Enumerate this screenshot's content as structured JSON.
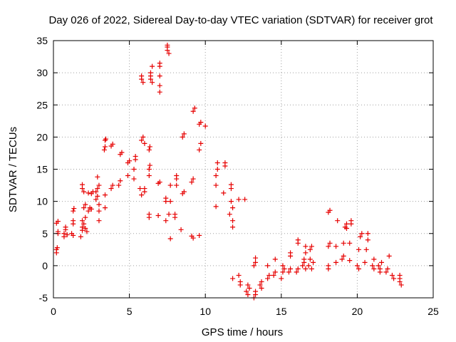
{
  "chart_data": {
    "type": "scatter",
    "title": "Day 026 of 2022, Sidereal Day-to-day VTEC variation (SDTVAR) for receiver grot",
    "xlabel": "GPS time / hours",
    "ylabel": "SDTVAR / TECUs",
    "xlim": [
      0,
      25
    ],
    "ylim": [
      -5,
      35
    ],
    "xticks": [
      0,
      5,
      10,
      15,
      20,
      25
    ],
    "yticks": [
      -5,
      0,
      5,
      10,
      15,
      20,
      25,
      30,
      35
    ],
    "grid": true,
    "marker": "plus",
    "colors": {
      "series": "#e60000",
      "axis": "#000000",
      "grid": "#a0a0a0"
    },
    "series": [
      {
        "name": "SDTVAR",
        "points": [
          [
            0.2,
            2.0
          ],
          [
            0.2,
            2.5
          ],
          [
            0.25,
            2.8
          ],
          [
            0.3,
            5.0
          ],
          [
            0.3,
            5.3
          ],
          [
            0.2,
            6.6
          ],
          [
            0.3,
            6.9
          ],
          [
            0.7,
            4.5
          ],
          [
            0.7,
            5.0
          ],
          [
            0.8,
            5.6
          ],
          [
            0.8,
            6.0
          ],
          [
            0.9,
            4.8
          ],
          [
            1.2,
            5.0
          ],
          [
            1.3,
            6.5
          ],
          [
            1.3,
            7.0
          ],
          [
            1.3,
            8.5
          ],
          [
            1.35,
            8.9
          ],
          [
            1.3,
            4.7
          ],
          [
            1.8,
            4.5
          ],
          [
            1.9,
            5.5
          ],
          [
            1.9,
            6.0
          ],
          [
            2.0,
            6.5
          ],
          [
            1.9,
            7.0
          ],
          [
            1.9,
            12.0
          ],
          [
            1.9,
            12.6
          ],
          [
            2.0,
            11.5
          ],
          [
            2.0,
            9.0
          ],
          [
            2.1,
            9.5
          ],
          [
            2.1,
            7.5
          ],
          [
            2.1,
            5.8
          ],
          [
            2.2,
            5.3
          ],
          [
            2.3,
            8.5
          ],
          [
            2.4,
            9.0
          ],
          [
            2.5,
            8.8
          ],
          [
            2.5,
            11.2
          ],
          [
            2.6,
            11.5
          ],
          [
            2.3,
            11.3
          ],
          [
            2.8,
            10.3
          ],
          [
            2.8,
            11.5
          ],
          [
            2.9,
            10.8
          ],
          [
            3.0,
            8.5
          ],
          [
            3.0,
            9.5
          ],
          [
            2.9,
            12.0
          ],
          [
            3.0,
            12.5
          ],
          [
            2.9,
            13.8
          ],
          [
            3.0,
            7.0
          ],
          [
            3.4,
            9.0
          ],
          [
            3.4,
            11.0
          ],
          [
            3.35,
            18.0
          ],
          [
            3.4,
            18.5
          ],
          [
            3.4,
            19.5
          ],
          [
            3.45,
            19.7
          ],
          [
            3.8,
            12.0
          ],
          [
            3.9,
            12.5
          ],
          [
            3.8,
            18.6
          ],
          [
            3.9,
            18.9
          ],
          [
            4.3,
            12.5
          ],
          [
            4.4,
            13.2
          ],
          [
            4.4,
            17.3
          ],
          [
            4.5,
            17.6
          ],
          [
            4.9,
            14.0
          ],
          [
            4.9,
            16.0
          ],
          [
            5.0,
            16.3
          ],
          [
            5.3,
            13.5
          ],
          [
            5.3,
            15.0
          ],
          [
            5.4,
            16.5
          ],
          [
            5.4,
            17.0
          ],
          [
            5.7,
            12.0
          ],
          [
            5.8,
            11.0
          ],
          [
            5.8,
            19.5
          ],
          [
            5.9,
            20.0
          ],
          [
            5.8,
            29.0
          ],
          [
            5.8,
            29.5
          ],
          [
            5.9,
            28.5
          ],
          [
            6.0,
            12.0
          ],
          [
            6.0,
            11.5
          ],
          [
            6.0,
            19.0
          ],
          [
            6.3,
            7.5
          ],
          [
            6.3,
            8.0
          ],
          [
            6.3,
            14.0
          ],
          [
            6.3,
            15.0
          ],
          [
            6.35,
            15.6
          ],
          [
            6.3,
            18.0
          ],
          [
            6.35,
            18.5
          ],
          [
            6.4,
            29.0
          ],
          [
            6.4,
            29.5
          ],
          [
            6.4,
            30.0
          ],
          [
            6.5,
            31.0
          ],
          [
            6.5,
            28.5
          ],
          [
            6.9,
            7.8
          ],
          [
            6.9,
            12.8
          ],
          [
            7.0,
            13.0
          ],
          [
            7.0,
            31.5
          ],
          [
            7.0,
            31.0
          ],
          [
            7.0,
            29.5
          ],
          [
            7.0,
            28.0
          ],
          [
            7.0,
            27.0
          ],
          [
            7.4,
            7.0
          ],
          [
            7.4,
            10.0
          ],
          [
            7.4,
            10.5
          ],
          [
            7.5,
            34.0
          ],
          [
            7.5,
            33.5
          ],
          [
            7.6,
            33.0
          ],
          [
            7.5,
            34.3
          ],
          [
            7.7,
            4.2
          ],
          [
            7.7,
            10.0
          ],
          [
            7.7,
            12.5
          ],
          [
            7.6,
            8.0
          ],
          [
            8.0,
            7.5
          ],
          [
            8.0,
            8.0
          ],
          [
            8.1,
            12.5
          ],
          [
            8.1,
            13.5
          ],
          [
            8.1,
            14.0
          ],
          [
            8.4,
            5.6
          ],
          [
            8.5,
            11.2
          ],
          [
            8.6,
            11.5
          ],
          [
            8.5,
            20.0
          ],
          [
            8.6,
            20.5
          ],
          [
            9.1,
            4.6
          ],
          [
            9.2,
            4.3
          ],
          [
            9.1,
            13.0
          ],
          [
            9.2,
            13.5
          ],
          [
            9.2,
            24.0
          ],
          [
            9.3,
            24.5
          ],
          [
            9.6,
            4.7
          ],
          [
            9.6,
            18.0
          ],
          [
            9.7,
            19.0
          ],
          [
            9.6,
            22.0
          ],
          [
            9.7,
            22.3
          ],
          [
            10.0,
            21.7
          ],
          [
            10.7,
            9.2
          ],
          [
            10.7,
            12.5
          ],
          [
            10.7,
            14.0
          ],
          [
            10.8,
            15.0
          ],
          [
            10.8,
            16.0
          ],
          [
            11.2,
            11.3
          ],
          [
            11.3,
            15.5
          ],
          [
            11.3,
            16.0
          ],
          [
            11.6,
            8.0
          ],
          [
            11.7,
            12.0
          ],
          [
            11.7,
            12.6
          ],
          [
            11.8,
            7.0
          ],
          [
            11.8,
            6.0
          ],
          [
            11.7,
            10.0
          ],
          [
            11.8,
            9.0
          ],
          [
            11.8,
            -2.0
          ],
          [
            12.2,
            10.3
          ],
          [
            12.6,
            10.3
          ],
          [
            12.2,
            -1.5
          ],
          [
            12.3,
            -2.5
          ],
          [
            12.3,
            -3.0
          ],
          [
            12.7,
            -4.0
          ],
          [
            12.8,
            -4.5
          ],
          [
            12.8,
            -3.0
          ],
          [
            12.9,
            -3.5
          ],
          [
            13.2,
            -5.0
          ],
          [
            13.3,
            -4.5
          ],
          [
            13.3,
            -4.0
          ],
          [
            13.2,
            0.0
          ],
          [
            13.3,
            0.5
          ],
          [
            13.3,
            1.2
          ],
          [
            13.6,
            -3.0
          ],
          [
            13.7,
            -3.5
          ],
          [
            13.7,
            -2.5
          ],
          [
            14.1,
            -2.0
          ],
          [
            14.2,
            -1.5
          ],
          [
            14.1,
            0.0
          ],
          [
            14.5,
            -1.5
          ],
          [
            14.6,
            -1.0
          ],
          [
            14.6,
            1.0
          ],
          [
            15.0,
            -2.0
          ],
          [
            15.1,
            -1.0
          ],
          [
            15.1,
            0.0
          ],
          [
            15.2,
            -0.5
          ],
          [
            15.5,
            -1.0
          ],
          [
            15.6,
            -0.5
          ],
          [
            15.6,
            1.5
          ],
          [
            15.6,
            2.0
          ],
          [
            16.0,
            -1.0
          ],
          [
            16.1,
            -0.5
          ],
          [
            16.1,
            4.0
          ],
          [
            16.1,
            3.5
          ],
          [
            16.4,
            0.0
          ],
          [
            16.5,
            0.5
          ],
          [
            16.5,
            1.0
          ],
          [
            16.6,
            2.0
          ],
          [
            16.6,
            3.0
          ],
          [
            16.6,
            -0.5
          ],
          [
            16.8,
            0.0
          ],
          [
            16.9,
            1.0
          ],
          [
            16.9,
            2.5
          ],
          [
            17.0,
            3.0
          ],
          [
            17.0,
            -0.5
          ],
          [
            17.1,
            0.5
          ],
          [
            18.1,
            -0.5
          ],
          [
            18.1,
            0.0
          ],
          [
            18.1,
            3.0
          ],
          [
            18.2,
            3.5
          ],
          [
            18.1,
            8.3
          ],
          [
            18.2,
            8.6
          ],
          [
            18.6,
            0.5
          ],
          [
            18.6,
            3.0
          ],
          [
            18.7,
            7.0
          ],
          [
            19.0,
            1.0
          ],
          [
            19.1,
            1.5
          ],
          [
            19.1,
            3.5
          ],
          [
            19.2,
            6.0
          ],
          [
            19.3,
            6.5
          ],
          [
            19.3,
            5.8
          ],
          [
            19.5,
            0.8
          ],
          [
            19.5,
            3.5
          ],
          [
            19.6,
            6.5
          ],
          [
            19.6,
            7.0
          ],
          [
            20.0,
            0.0
          ],
          [
            20.1,
            -0.5
          ],
          [
            20.1,
            2.5
          ],
          [
            20.2,
            4.5
          ],
          [
            20.3,
            5.0
          ],
          [
            20.5,
            0.5
          ],
          [
            20.6,
            2.5
          ],
          [
            20.7,
            4.0
          ],
          [
            20.7,
            5.0
          ],
          [
            21.0,
            0.0
          ],
          [
            21.1,
            1.0
          ],
          [
            21.1,
            -0.5
          ],
          [
            21.4,
            0.0
          ],
          [
            21.5,
            -0.5
          ],
          [
            21.5,
            -1.0
          ],
          [
            21.6,
            0.5
          ],
          [
            21.9,
            -1.0
          ],
          [
            22.0,
            -0.5
          ],
          [
            22.1,
            1.5
          ],
          [
            22.3,
            -1.5
          ],
          [
            22.4,
            -2.0
          ],
          [
            22.8,
            -2.0
          ],
          [
            22.8,
            -2.5
          ],
          [
            22.9,
            -3.0
          ],
          [
            22.8,
            -1.5
          ]
        ]
      }
    ]
  }
}
